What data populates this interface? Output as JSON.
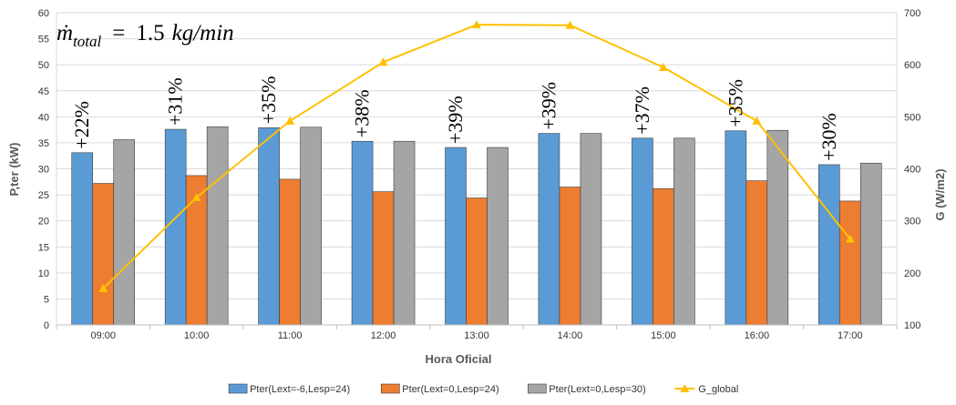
{
  "chart_data": {
    "type": "bar",
    "title": "",
    "xlabel": "Hora Oficial",
    "ylabel": "P,ter (kW)",
    "y2label": "G (W/m2)",
    "ylim": [
      0,
      60
    ],
    "y2lim": [
      100,
      700
    ],
    "yticks": [
      0,
      5,
      10,
      15,
      20,
      25,
      30,
      35,
      40,
      45,
      50,
      55,
      60
    ],
    "y2ticks": [
      100,
      200,
      300,
      400,
      500,
      600,
      700
    ],
    "grid": true,
    "legend_position": "bottom",
    "categories": [
      "09:00",
      "10:00",
      "11:00",
      "12:00",
      "13:00",
      "14:00",
      "15:00",
      "16:00",
      "17:00"
    ],
    "series": [
      {
        "name": "Pter(Lext=-6,Lesp=24)",
        "type": "bar",
        "color": "#5b9bd5",
        "values": [
          33.1,
          37.6,
          37.9,
          35.3,
          34.1,
          36.8,
          35.9,
          37.3,
          30.8
        ]
      },
      {
        "name": "Pter(Lext=0,Lesp=24)",
        "type": "bar",
        "color": "#ed7d31",
        "values": [
          27.2,
          28.7,
          28.0,
          25.6,
          24.4,
          26.5,
          26.2,
          27.7,
          23.8
        ]
      },
      {
        "name": "Pter(Lext=0,Lesp=30)",
        "type": "bar",
        "color": "#a5a5a5",
        "values": [
          35.6,
          38.1,
          38.0,
          35.3,
          34.1,
          36.8,
          35.9,
          37.4,
          31.1
        ]
      },
      {
        "name": "G_global",
        "type": "line",
        "axis": "right",
        "color": "#ffc000",
        "marker": "triangle",
        "values": [
          170,
          345,
          492,
          605,
          677,
          676,
          595,
          492,
          265
        ]
      }
    ],
    "annotations": [
      "+22%",
      "+31%",
      "+35%",
      "+38%",
      "+39%",
      "+39%",
      "+37%",
      "+35%",
      "+30%"
    ],
    "formula": {
      "symbol": "ṁ",
      "subscript": "total",
      "equals": "=",
      "value": "1.5",
      "unit": "kg/min"
    }
  }
}
